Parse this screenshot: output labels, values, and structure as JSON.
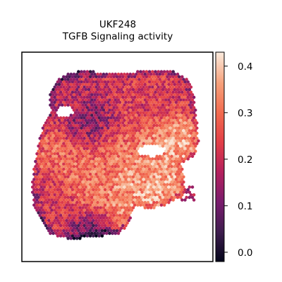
{
  "chart_data": {
    "type": "heatmap",
    "title": "UKF248",
    "subtitle": "TGFB Signaling activity",
    "xlabel": "",
    "ylabel": "",
    "colorbar": {
      "colormap": "rocket",
      "range": [
        -0.02,
        0.43
      ],
      "ticks": [
        {
          "value": 0.0,
          "label": "0.0"
        },
        {
          "value": 0.1,
          "label": "0.1"
        },
        {
          "value": 0.2,
          "label": "0.2"
        },
        {
          "value": 0.3,
          "label": "0.3"
        },
        {
          "value": 0.4,
          "label": "0.4"
        }
      ]
    },
    "spatial_regions": [
      {
        "region": "upper-left lobe",
        "value": 0.18
      },
      {
        "region": "upper-right band",
        "value": 0.22
      },
      {
        "region": "left-center dark patch",
        "value": 0.07
      },
      {
        "region": "central body",
        "value": 0.3
      },
      {
        "region": "right-center highlight",
        "value": 0.37
      },
      {
        "region": "lower-right core",
        "value": 0.38
      },
      {
        "region": "lower-left edge",
        "value": 0.2
      },
      {
        "region": "bottom strip",
        "value": 0.08
      }
    ],
    "grid": false,
    "legend": "colorbar-right"
  },
  "colors": {
    "colormap_stops": [
      "#03051a",
      "#3e1d4e",
      "#781c6d",
      "#b5215d",
      "#e23f47",
      "#f26b4f",
      "#f6a07a",
      "#faebdd"
    ]
  }
}
